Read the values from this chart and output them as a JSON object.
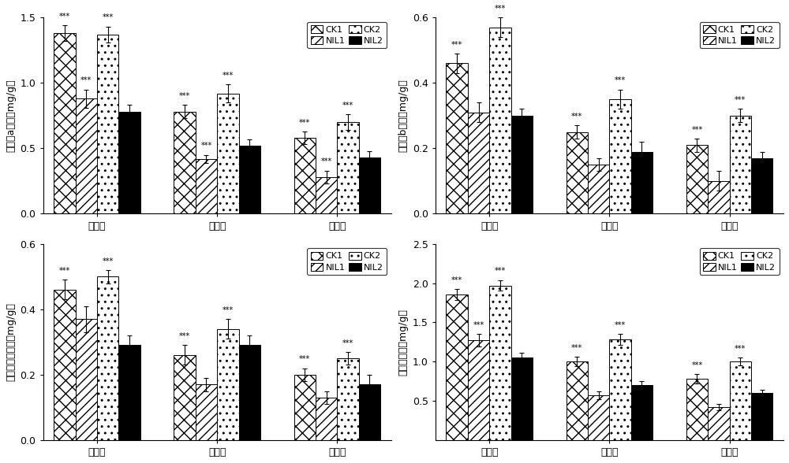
{
  "panels": [
    {
      "ylabel": "叶绿素a含量（mg/g）",
      "ylabel_plain": "叶绿素a含量（mg/g）",
      "ylim": [
        0.0,
        1.5
      ],
      "yticks": [
        0.0,
        0.5,
        1.0,
        1.5
      ],
      "groups": [
        "上部叶",
        "中部叶",
        "下部叶"
      ],
      "values": {
        "CK1": [
          1.38,
          0.78,
          0.58
        ],
        "NIL1": [
          0.88,
          0.42,
          0.28
        ],
        "CK2": [
          1.37,
          0.92,
          0.7
        ],
        "NIL2": [
          0.78,
          0.52,
          0.43
        ]
      },
      "errors": {
        "CK1": [
          0.06,
          0.05,
          0.05
        ],
        "NIL1": [
          0.07,
          0.03,
          0.05
        ],
        "CK2": [
          0.06,
          0.07,
          0.06
        ],
        "NIL2": [
          0.05,
          0.05,
          0.05
        ]
      },
      "sig": {
        "CK1": [
          true,
          true,
          true
        ],
        "NIL1": [
          true,
          true,
          true
        ],
        "CK2": [
          true,
          true,
          true
        ],
        "NIL2": [
          false,
          false,
          false
        ]
      }
    },
    {
      "ylabel": "叶绿素b含量（mg/g）",
      "ylim": [
        0.0,
        0.6
      ],
      "yticks": [
        0.0,
        0.2,
        0.4,
        0.6
      ],
      "groups": [
        "上部叶",
        "中部叶",
        "下部叶"
      ],
      "values": {
        "CK1": [
          0.46,
          0.25,
          0.21
        ],
        "NIL1": [
          0.31,
          0.15,
          0.1
        ],
        "CK2": [
          0.57,
          0.35,
          0.3
        ],
        "NIL2": [
          0.3,
          0.19,
          0.17
        ]
      },
      "errors": {
        "CK1": [
          0.03,
          0.02,
          0.02
        ],
        "NIL1": [
          0.03,
          0.02,
          0.03
        ],
        "CK2": [
          0.03,
          0.03,
          0.02
        ],
        "NIL2": [
          0.02,
          0.03,
          0.02
        ]
      },
      "sig": {
        "CK1": [
          true,
          true,
          true
        ],
        "NIL1": [
          false,
          false,
          false
        ],
        "CK2": [
          true,
          true,
          true
        ],
        "NIL2": [
          false,
          false,
          false
        ]
      }
    },
    {
      "ylabel": "类胡萝卜素含量（mg/g）",
      "ylim": [
        0.0,
        0.6
      ],
      "yticks": [
        0.0,
        0.2,
        0.4,
        0.6
      ],
      "groups": [
        "上部叶",
        "中部叶",
        "下部叶"
      ],
      "values": {
        "CK1": [
          0.46,
          0.26,
          0.2
        ],
        "NIL1": [
          0.37,
          0.17,
          0.13
        ],
        "CK2": [
          0.5,
          0.34,
          0.25
        ],
        "NIL2": [
          0.29,
          0.29,
          0.17
        ]
      },
      "errors": {
        "CK1": [
          0.03,
          0.03,
          0.02
        ],
        "NIL1": [
          0.04,
          0.02,
          0.02
        ],
        "CK2": [
          0.02,
          0.03,
          0.02
        ],
        "NIL2": [
          0.03,
          0.03,
          0.03
        ]
      },
      "sig": {
        "CK1": [
          true,
          true,
          true
        ],
        "NIL1": [
          false,
          false,
          false
        ],
        "CK2": [
          true,
          true,
          true
        ],
        "NIL2": [
          false,
          false,
          false
        ]
      }
    },
    {
      "ylabel": "叶绿素含量（mg/g）",
      "ylim": [
        0.0,
        2.5
      ],
      "yticks": [
        0.5,
        1.0,
        1.5,
        2.0,
        2.5
      ],
      "groups": [
        "上部叶",
        "中部叶",
        "下部叶"
      ],
      "values": {
        "CK1": [
          1.85,
          1.0,
          0.78
        ],
        "NIL1": [
          1.27,
          0.57,
          0.42
        ],
        "CK2": [
          1.97,
          1.28,
          1.0
        ],
        "NIL2": [
          1.05,
          0.7,
          0.6
        ]
      },
      "errors": {
        "CK1": [
          0.07,
          0.06,
          0.06
        ],
        "NIL1": [
          0.08,
          0.05,
          0.04
        ],
        "CK2": [
          0.07,
          0.07,
          0.05
        ],
        "NIL2": [
          0.06,
          0.05,
          0.04
        ]
      },
      "sig": {
        "CK1": [
          true,
          true,
          true
        ],
        "NIL1": [
          true,
          false,
          false
        ],
        "CK2": [
          true,
          true,
          true
        ],
        "NIL2": [
          false,
          false,
          false
        ]
      }
    }
  ],
  "series_keys": [
    "CK1",
    "NIL1",
    "CK2",
    "NIL2"
  ],
  "bar_width": 0.18,
  "sig_text": "***"
}
